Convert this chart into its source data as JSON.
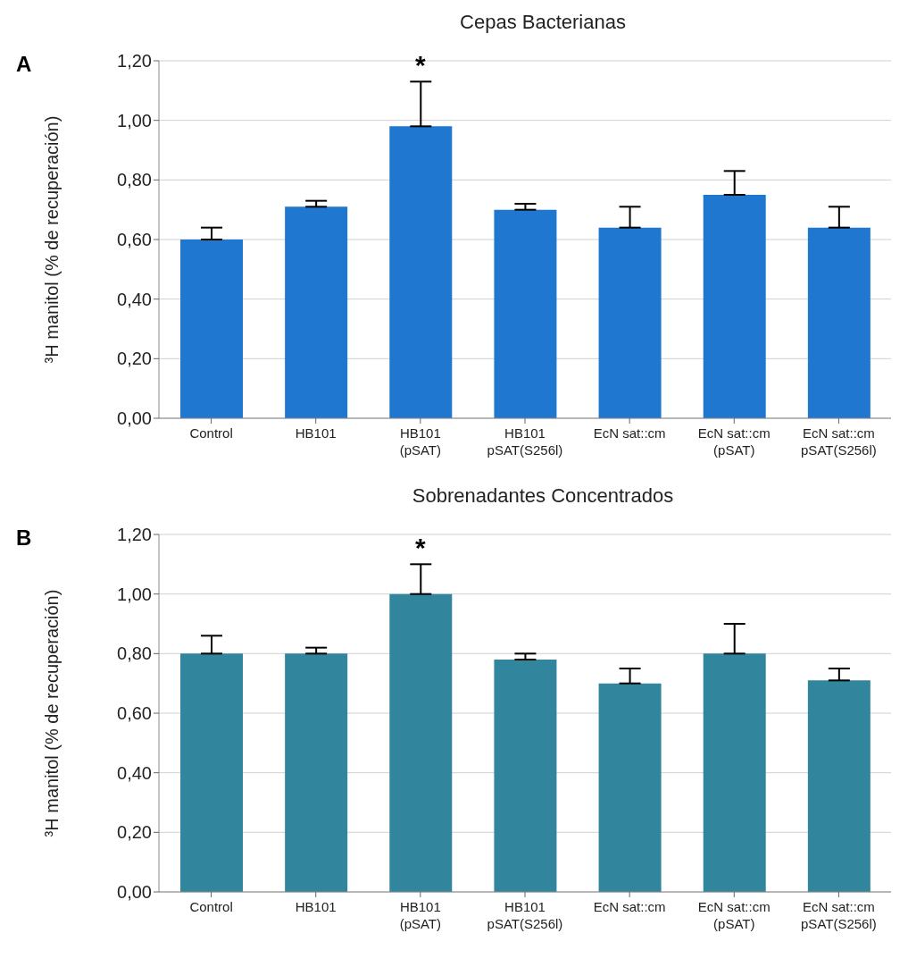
{
  "chart_data": [
    {
      "type": "bar",
      "title": "Cepas Bacterianas",
      "ylabel": "³H manitol (% de recuperación)",
      "categories": [
        "Control",
        "HB101",
        "HB101\n(pSAT)",
        "HB101\npSAT(S256l)",
        "EcN sat::cm",
        "EcN sat::cm\n(pSAT)",
        "EcN sat::cm\npSAT(S256l)"
      ],
      "values": [
        0.6,
        0.71,
        0.98,
        0.7,
        0.64,
        0.75,
        0.64
      ],
      "errors": [
        [
          0.6,
          0.64
        ],
        [
          0.71,
          0.73
        ],
        [
          0.98,
          1.13
        ],
        [
          0.7,
          0.72
        ],
        [
          0.64,
          0.71
        ],
        [
          0.75,
          0.83
        ],
        [
          0.64,
          0.71
        ]
      ],
      "color": "#1f77d0",
      "ylim": [
        0,
        1.2
      ],
      "yticks": [
        {
          "value": 0,
          "label": "0,00"
        },
        {
          "value": 0.2,
          "label": "0,20"
        },
        {
          "value": 0.4,
          "label": "0,40"
        },
        {
          "value": 0.6,
          "label": "0,60"
        },
        {
          "value": 0.8,
          "label": "0,80"
        },
        {
          "value": 1.0,
          "label": "1,00"
        },
        {
          "value": 1.2,
          "label": "1,20"
        }
      ],
      "grid": "y",
      "annotations": [
        "A",
        "*"
      ]
    },
    {
      "type": "bar",
      "title": "Sobrenadantes Concentrados",
      "ylabel": "³H manitol (% de recuperación)",
      "categories": [
        "Control",
        "HB101",
        "HB101\n(pSAT)",
        "HB101\npSAT(S256l)",
        "EcN sat::cm",
        "EcN sat::cm\n(pSAT)",
        "EcN sat::cm\npSAT(S256l)"
      ],
      "values": [
        0.8,
        0.8,
        1.0,
        0.78,
        0.7,
        0.8,
        0.71
      ],
      "errors": [
        [
          0.8,
          0.86
        ],
        [
          0.8,
          0.82
        ],
        [
          1.0,
          1.1
        ],
        [
          0.78,
          0.8
        ],
        [
          0.7,
          0.75
        ],
        [
          0.8,
          0.9
        ],
        [
          0.71,
          0.75
        ]
      ],
      "color": "#31869e",
      "ylim": [
        0,
        1.2
      ],
      "yticks": [
        {
          "value": 0,
          "label": "0,00"
        },
        {
          "value": 0.2,
          "label": "0,20"
        },
        {
          "value": 0.4,
          "label": "0,40"
        },
        {
          "value": 0.6,
          "label": "0,60"
        },
        {
          "value": 0.8,
          "label": "0,80"
        },
        {
          "value": 1.0,
          "label": "1,00"
        },
        {
          "value": 1.2,
          "label": "1,20"
        }
      ],
      "grid": "y",
      "annotations": [
        "B",
        "*"
      ]
    }
  ]
}
